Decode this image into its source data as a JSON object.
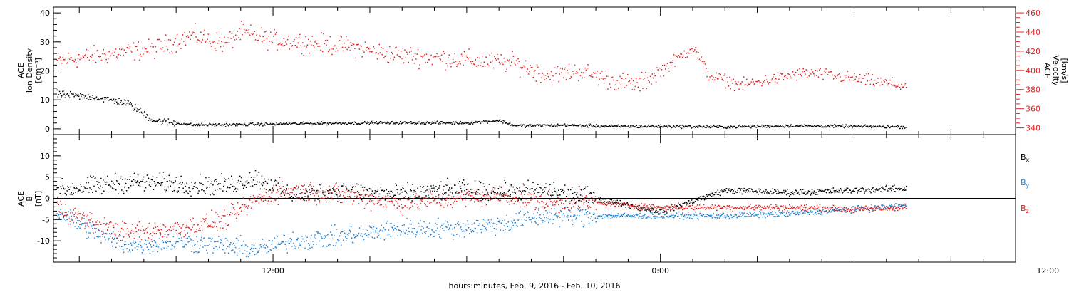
{
  "figure": {
    "x_axis_label": "hours:minutes, Feb.  9, 2016 - Feb. 10, 2016",
    "x_tick_labels": [
      "12:00",
      "0:00",
      "12:00"
    ],
    "colors": {
      "black": "#000000",
      "red": "#e02020",
      "blue": "#1a7fd4",
      "axis": "#000000"
    }
  },
  "chart_data": [
    {
      "type": "scatter",
      "panel": "top",
      "y_label_left": [
        "ACE",
        "Ion Density",
        "[cm⁻³]"
      ],
      "y_label_right": [
        "ACE",
        "Velocity",
        "[km/s]"
      ],
      "x_unit": "hours since 2016-02-09 00:00",
      "xlim": [
        5.2,
        35.0
      ],
      "ylim_left": [
        -2,
        42
      ],
      "yticks_left": [
        0,
        10,
        20,
        30,
        40
      ],
      "ylim_right": [
        333,
        466
      ],
      "yticks_right": [
        340,
        360,
        380,
        400,
        420,
        440,
        460
      ],
      "grid": false,
      "series": [
        {
          "axis": "left",
          "color": "black",
          "trend": [
            [
              5.3,
              12
            ],
            [
              6.5,
              11
            ],
            [
              7.5,
              9
            ],
            [
              8.3,
              3
            ],
            [
              9.5,
              1.5
            ],
            [
              11,
              1.6
            ],
            [
              13,
              2
            ],
            [
              15,
              2.2
            ],
            [
              17,
              2.2
            ],
            [
              18,
              2.2
            ],
            [
              19,
              3
            ],
            [
              19.5,
              1.2
            ],
            [
              21,
              1.4
            ],
            [
              22.5,
              1
            ],
            [
              24,
              1
            ],
            [
              26,
              0.8
            ],
            [
              28,
              1.2
            ],
            [
              30,
              1
            ],
            [
              31.6,
              0.8
            ]
          ]
        },
        {
          "axis": "right",
          "color": "red",
          "trend": [
            [
              5.3,
              410
            ],
            [
              6.3,
              415
            ],
            [
              7.5,
              420
            ],
            [
              8.3,
              423
            ],
            [
              9.5,
              437
            ],
            [
              10.5,
              428
            ],
            [
              11,
              440
            ],
            [
              12,
              432
            ],
            [
              13,
              430
            ],
            [
              14.5,
              425
            ],
            [
              15.5,
              418
            ],
            [
              16.5,
              415
            ],
            [
              18.5,
              410
            ],
            [
              19.5,
              408
            ],
            [
              20.5,
              395
            ],
            [
              21.5,
              400
            ],
            [
              22.5,
              390
            ],
            [
              23.3,
              385
            ],
            [
              24.2,
              405
            ],
            [
              25,
              425
            ],
            [
              25.5,
              395
            ],
            [
              26.5,
              385
            ],
            [
              28.5,
              398
            ],
            [
              30,
              392
            ],
            [
              31.6,
              384
            ]
          ]
        }
      ]
    },
    {
      "type": "scatter",
      "panel": "bottom",
      "y_label_left": [
        "ACE",
        "B",
        "[nT]"
      ],
      "x_unit": "hours since 2016-02-09 00:00",
      "xlim": [
        5.2,
        35.0
      ],
      "ylim": [
        -15,
        15
      ],
      "yticks": [
        -10,
        -5,
        0,
        5,
        10
      ],
      "zero_line": true,
      "grid": false,
      "series": [
        {
          "name": "Bx",
          "color": "black",
          "trend": [
            [
              5.3,
              2
            ],
            [
              6.5,
              3
            ],
            [
              7.5,
              4
            ],
            [
              9,
              3.5
            ],
            [
              10.5,
              3
            ],
            [
              11.5,
              5
            ],
            [
              12.5,
              1
            ],
            [
              14,
              2
            ],
            [
              16,
              1
            ],
            [
              17.5,
              2
            ],
            [
              19,
              1.5
            ],
            [
              20.5,
              2
            ],
            [
              22,
              0
            ],
            [
              24,
              -3
            ],
            [
              26,
              2
            ],
            [
              28,
              1.5
            ],
            [
              30,
              2
            ],
            [
              31.6,
              2.5
            ]
          ]
        },
        {
          "name": "By",
          "color": "blue",
          "trend": [
            [
              5.3,
              -3
            ],
            [
              6.5,
              -8
            ],
            [
              7.5,
              -11
            ],
            [
              9,
              -10
            ],
            [
              10.5,
              -11
            ],
            [
              11.5,
              -12
            ],
            [
              12.5,
              -10
            ],
            [
              14,
              -9
            ],
            [
              16,
              -7
            ],
            [
              17.5,
              -7
            ],
            [
              19,
              -6
            ],
            [
              20.5,
              -4
            ],
            [
              22,
              -4
            ],
            [
              24,
              -4
            ],
            [
              26,
              -4
            ],
            [
              28,
              -3.5
            ],
            [
              30,
              -2.5
            ],
            [
              31.6,
              -1.5
            ]
          ]
        },
        {
          "name": "Bz",
          "color": "red",
          "trend": [
            [
              5.3,
              -2
            ],
            [
              6.5,
              -6
            ],
            [
              7.5,
              -8
            ],
            [
              9,
              -7
            ],
            [
              10.5,
              -5
            ],
            [
              11.5,
              0
            ],
            [
              12.5,
              2
            ],
            [
              14,
              1
            ],
            [
              16,
              -1
            ],
            [
              17.5,
              0
            ],
            [
              19,
              1
            ],
            [
              20.5,
              -1
            ],
            [
              22,
              -1
            ],
            [
              24,
              -2
            ],
            [
              26,
              -2
            ],
            [
              28,
              -2
            ],
            [
              30,
              -2.5
            ],
            [
              31.6,
              -2
            ]
          ]
        }
      ]
    }
  ]
}
